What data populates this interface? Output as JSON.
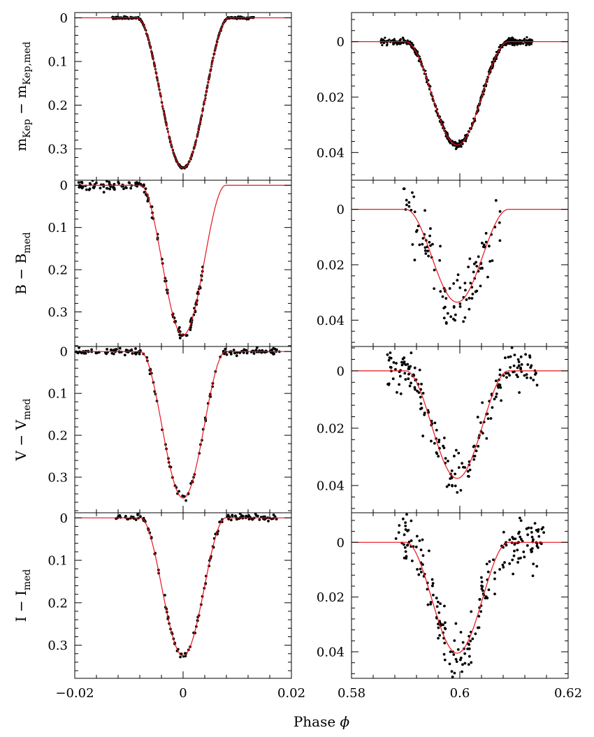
{
  "figure": {
    "xlabel": "Phase",
    "xlabel_symbol": "ϕ",
    "model_color": "#e8141e",
    "data_color": "#000000"
  },
  "chart_data": [
    {
      "type": "scatter",
      "panel": "primary-kepler",
      "band": "Kepler",
      "column": "primary",
      "ylabel": {
        "base": "m",
        "sub": "Kep",
        "mid": " − m",
        "sub2": "Kep,med"
      },
      "xlim": [
        -0.02,
        0.02
      ],
      "ylim": [
        0.372,
        -0.012
      ],
      "yticks": [
        0,
        0.1,
        0.2,
        0.3
      ],
      "ytick_labels": [
        "0",
        "0.1",
        "0.2",
        "0.3"
      ],
      "xticks": [
        -0.02,
        0,
        0.02
      ],
      "xtick_labels": [
        "−0.02",
        "0",
        "0.02"
      ],
      "model": {
        "center": 0.0,
        "depth": 0.344,
        "half_width": 0.0085
      },
      "observations": {
        "x_range": [
          -0.0131,
          0.0131
        ],
        "scatter": 0.0012,
        "count": 520,
        "seed": 11
      }
    },
    {
      "type": "scatter",
      "panel": "secondary-kepler",
      "band": "Kepler",
      "column": "secondary",
      "xlim": [
        0.58,
        0.62
      ],
      "ylim": [
        0.05,
        -0.0105
      ],
      "yticks": [
        0,
        0.02,
        0.04
      ],
      "ytick_labels": [
        "0",
        "0.02",
        "0.04"
      ],
      "xticks": [
        0.58,
        0.6,
        0.62
      ],
      "xtick_labels": [
        "0.58",
        "0.6",
        "0.62"
      ],
      "model": {
        "center": 0.5995,
        "depth": 0.0373,
        "half_width": 0.0095
      },
      "observations": {
        "x_range": [
          0.5854,
          0.6134
        ],
        "scatter": 0.0006,
        "count": 600,
        "seed": 12
      }
    },
    {
      "type": "scatter",
      "panel": "primary-b",
      "band": "B",
      "column": "primary",
      "ylabel": {
        "base": "B",
        "sub": "",
        "mid": " − B",
        "sub2": "med"
      },
      "xlim": [
        -0.02,
        0.02
      ],
      "ylim": [
        0.382,
        -0.012
      ],
      "yticks": [
        0,
        0.1,
        0.2,
        0.3
      ],
      "ytick_labels": [
        "0",
        "0.1",
        "0.2",
        "0.3"
      ],
      "xticks": [
        -0.02,
        0,
        0.02
      ],
      "xtick_labels": [
        "−0.02",
        "0",
        "0.02"
      ],
      "model": {
        "center": 0.0,
        "depth": 0.355,
        "half_width": 0.0079
      },
      "observations": {
        "x_range": [
          -0.0197,
          0.0043
        ],
        "scatter": 0.006,
        "count": 150,
        "seed": 21
      }
    },
    {
      "type": "scatter",
      "panel": "secondary-b",
      "band": "B",
      "column": "secondary",
      "xlim": [
        0.58,
        0.62
      ],
      "ylim": [
        0.0495,
        -0.0105
      ],
      "yticks": [
        0,
        0.02,
        0.04
      ],
      "ytick_labels": [
        "0",
        "0.02",
        "0.04"
      ],
      "xticks": [
        0.58,
        0.6,
        0.62
      ],
      "xtick_labels": [
        "0.58",
        "0.6",
        "0.62"
      ],
      "model": {
        "center": 0.5995,
        "depth": 0.0335,
        "half_width": 0.0095
      },
      "observations": {
        "x_range": [
          0.5895,
          0.6075
        ],
        "scatter": 0.006,
        "count": 110,
        "seed": 22
      }
    },
    {
      "type": "scatter",
      "panel": "primary-v",
      "band": "V",
      "column": "primary",
      "ylabel": {
        "base": "V",
        "sub": "",
        "mid": " − V",
        "sub2": "med"
      },
      "xlim": [
        -0.02,
        0.02
      ],
      "ylim": [
        0.385,
        -0.012
      ],
      "yticks": [
        0,
        0.1,
        0.2,
        0.3
      ],
      "ytick_labels": [
        "0",
        "0.1",
        "0.2",
        "0.3"
      ],
      "xticks": [
        -0.02,
        0,
        0.02
      ],
      "xtick_labels": [
        "−0.02",
        "0",
        "0.02"
      ],
      "model": {
        "center": 0.0,
        "depth": 0.35,
        "half_width": 0.0079
      },
      "observations": {
        "x_range": [
          -0.0197,
          0.0179
        ],
        "scatter": 0.004,
        "count": 160,
        "seed": 31
      }
    },
    {
      "type": "scatter",
      "panel": "secondary-v",
      "band": "V",
      "column": "secondary",
      "xlim": [
        0.58,
        0.62
      ],
      "ylim": [
        0.0495,
        -0.0085
      ],
      "yticks": [
        0,
        0.02,
        0.04
      ],
      "ytick_labels": [
        "0",
        "0.02",
        "0.04"
      ],
      "xticks": [
        0.58,
        0.6,
        0.62
      ],
      "xtick_labels": [
        "0.58",
        "0.6",
        "0.62"
      ],
      "model": {
        "center": 0.5995,
        "depth": 0.0375,
        "half_width": 0.0095
      },
      "observations": {
        "x_range": [
          0.5865,
          0.6145
        ],
        "scatter": 0.004,
        "count": 190,
        "seed": 32
      }
    },
    {
      "type": "scatter",
      "panel": "primary-i",
      "band": "I",
      "column": "primary",
      "ylabel": {
        "base": "I",
        "sub": "",
        "mid": " − I",
        "sub2": "med"
      },
      "xlim": [
        -0.02,
        0.02
      ],
      "ylim": [
        0.378,
        -0.012
      ],
      "yticks": [
        0,
        0.1,
        0.2,
        0.3
      ],
      "ytick_labels": [
        "0",
        "0.1",
        "0.2",
        "0.3"
      ],
      "xticks": [
        -0.02,
        0,
        0.02
      ],
      "xtick_labels": [
        "−0.02",
        "0",
        "0.02"
      ],
      "model": {
        "center": 0.0,
        "depth": 0.325,
        "half_width": 0.0079
      },
      "observations": {
        "x_range": [
          -0.0143,
          0.0173
        ],
        "scatter": 0.004,
        "count": 140,
        "seed": 41
      }
    },
    {
      "type": "scatter",
      "panel": "secondary-i",
      "band": "I",
      "column": "secondary",
      "xlim": [
        0.58,
        0.62
      ],
      "ylim": [
        0.0497,
        -0.0108
      ],
      "yticks": [
        0,
        0.02,
        0.04
      ],
      "ytick_labels": [
        "0",
        "0.02",
        "0.04"
      ],
      "xticks": [
        0.58,
        0.6,
        0.62
      ],
      "xtick_labels": [
        "0.58",
        "0.6",
        "0.62"
      ],
      "model": {
        "center": 0.5995,
        "depth": 0.0405,
        "half_width": 0.0095
      },
      "observations": {
        "x_range": [
          0.5882,
          0.6157
        ],
        "scatter": 0.005,
        "count": 210,
        "seed": 42
      }
    }
  ]
}
